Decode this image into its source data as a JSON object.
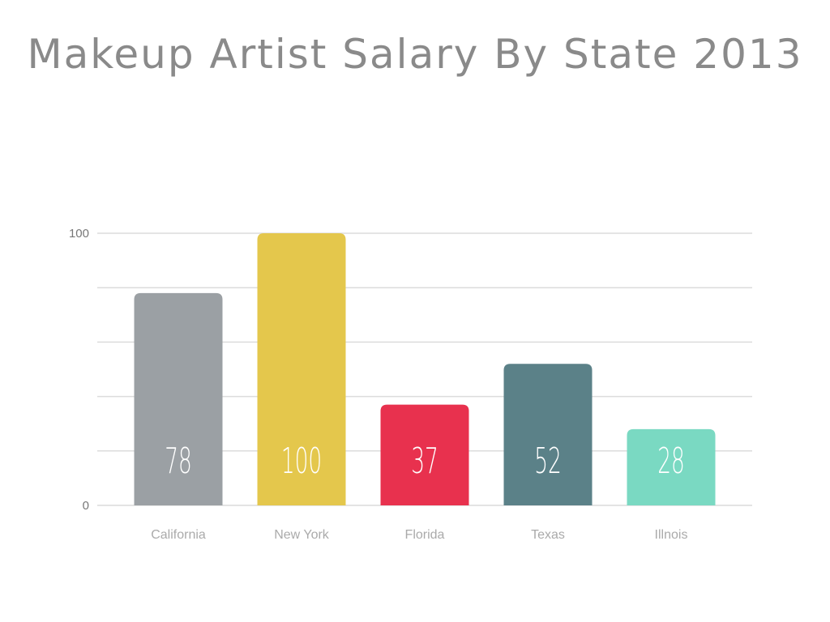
{
  "chart_data": {
    "type": "bar",
    "title": "Makeup Artist Salary By State 2013",
    "categories": [
      "California",
      "New York",
      "Florida",
      "Texas",
      "Illnois"
    ],
    "values": [
      78,
      100,
      37,
      52,
      28
    ],
    "colors": [
      "#9ba0a4",
      "#e4c74c",
      "#e8314e",
      "#5b8188",
      "#7ad9c2"
    ],
    "xlabel": "",
    "ylabel": "",
    "ylim": [
      0,
      100
    ],
    "yticks": [
      "0",
      "100"
    ],
    "grid_step": 20,
    "grid": true,
    "data_labels": [
      "78",
      "100",
      "37",
      "52",
      "28"
    ]
  }
}
